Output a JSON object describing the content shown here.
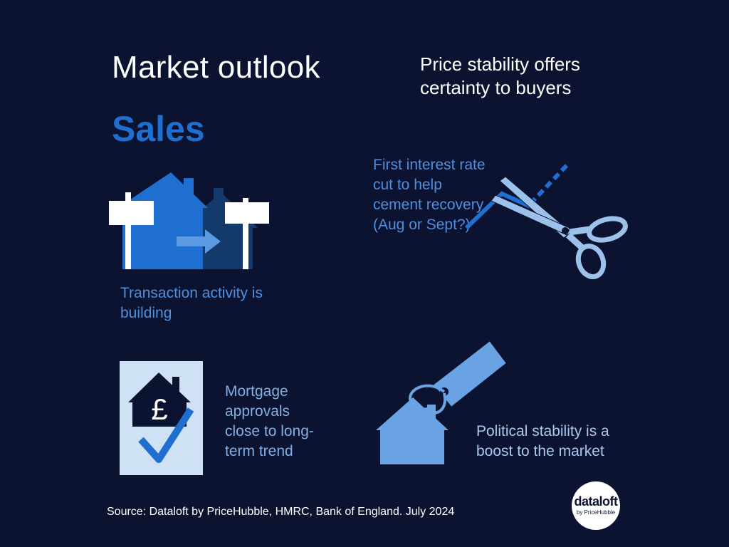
{
  "header": {
    "title": "Market outlook",
    "tagline": "Price stability offers certainty to buyers",
    "section": "Sales"
  },
  "items": [
    {
      "icon": "houses-for-sale-icon",
      "caption": "Transaction activity is building"
    },
    {
      "icon": "scissors-rate-cut-icon",
      "caption": "First interest rate cut to help cement recovery (Aug or Sept?)"
    },
    {
      "icon": "house-pound-check-icon",
      "caption": "Mortgage approvals close to long-term trend"
    },
    {
      "icon": "house-price-tag-icon",
      "caption": "Political stability is a boost to the market"
    }
  ],
  "footer": {
    "source": "Source: Dataloft by PriceHubble, HMRC, Bank of England. July 2024",
    "logo_main": "dataloft",
    "logo_sub": "by PriceHubble"
  },
  "colors": {
    "background": "#0b1330",
    "accent_blue": "#1f6fd1",
    "dark_blue": "#143a6b",
    "light_blue": "#7fb0e6",
    "pale_blue": "#cfe1f5"
  }
}
